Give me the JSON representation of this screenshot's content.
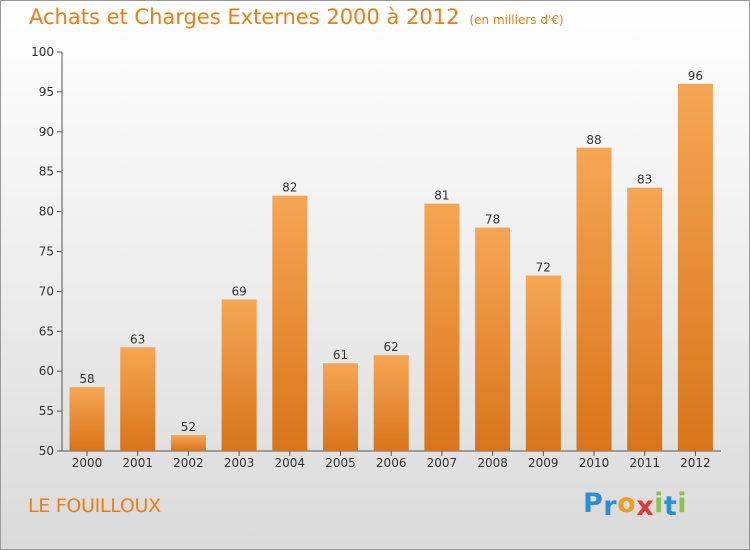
{
  "title": "Achats et Charges Externes 2000 à 2012",
  "subtitle": "(en milliers d'€)",
  "place": "LE FOUILLOUX",
  "logo": {
    "text": "Proxiti",
    "letters": [
      {
        "ch": "P",
        "color": "#2a8fd6"
      },
      {
        "ch": "r",
        "color": "#2a8fd6"
      },
      {
        "ch": "o",
        "color": "#f0a020"
      },
      {
        "ch": "x",
        "color": "#e53935"
      },
      {
        "ch": "i",
        "color": "#8bc34a"
      },
      {
        "ch": "t",
        "color": "#2a8fd6"
      },
      {
        "ch": "i",
        "color": "#8bc34a"
      }
    ]
  },
  "colors": {
    "accent": "#f07d12",
    "bar_top": "#f6a653",
    "bar_bottom": "#d9741a",
    "axis": "#555555",
    "text": "#333333"
  },
  "chart_data": {
    "type": "bar",
    "title": "Achats et Charges Externes 2000 à 2012",
    "subtitle": "(en milliers d'€)",
    "categories": [
      "2000",
      "2001",
      "2002",
      "2003",
      "2004",
      "2005",
      "2006",
      "2007",
      "2008",
      "2009",
      "2010",
      "2011",
      "2012"
    ],
    "values": [
      58,
      63,
      52,
      69,
      82,
      61,
      62,
      81,
      78,
      72,
      88,
      83,
      96
    ],
    "ylim": [
      50,
      100
    ],
    "yticks": [
      50,
      55,
      60,
      65,
      70,
      75,
      80,
      85,
      90,
      95,
      100
    ],
    "xlabel": "",
    "ylabel": "",
    "grid": false,
    "data_labels": true
  }
}
